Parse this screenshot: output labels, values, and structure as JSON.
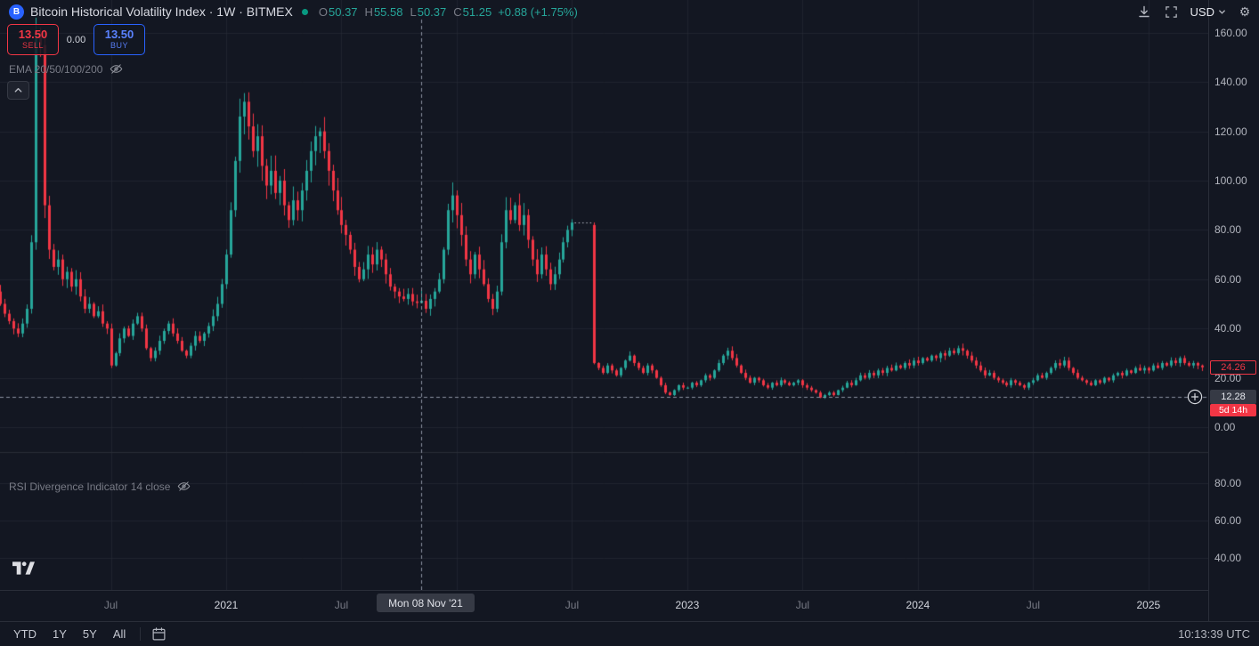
{
  "colors": {
    "bg": "#131722",
    "up": "#26a69a",
    "down": "#f23645",
    "blue": "#2962ff"
  },
  "header": {
    "logo_letter": "B",
    "symbol_title": "Bitcoin Historical Volatility Index · 1W · BITMEX",
    "ohlc": {
      "o_label": "O",
      "o": "50.37",
      "h_label": "H",
      "h": "55.58",
      "l_label": "L",
      "l": "50.37",
      "c_label": "C",
      "c": "51.25",
      "change": "+0.88 (+1.75%)"
    },
    "currency": "USD"
  },
  "trade_panel": {
    "sell_price": "13.50",
    "sell_label": "SELL",
    "spread": "0.00",
    "buy_price": "13.50",
    "buy_label": "BUY"
  },
  "indicators": {
    "ema_label": "EMA 20/50/100/200",
    "rsi_label": "RSI Divergence Indicator 14 close"
  },
  "price_scale": {
    "last_price": "24.26",
    "crosshair_price": "12.28",
    "countdown": "5d 14h"
  },
  "crosshair": {
    "date_label": "Mon 08 Nov '21"
  },
  "toolbar": {
    "ranges": [
      "YTD",
      "1Y",
      "5Y",
      "All"
    ],
    "clock": "10:13:39 UTC"
  },
  "chart_data": {
    "type": "candlestick",
    "title": "Bitcoin Historical Volatility Index",
    "interval": "1W",
    "exchange": "BITMEX",
    "unit": "USD",
    "x_range": [
      "Jan 2020",
      "Feb 2025"
    ],
    "ylim": [
      -12,
      168
    ],
    "yticks": [
      0,
      20,
      40,
      60,
      80,
      100,
      120,
      140,
      160
    ],
    "up_color": "#26a69a",
    "down_color": "#f23645",
    "weekly_closes": [
      55,
      50,
      46,
      43,
      40,
      38,
      42,
      48,
      75,
      160,
      155,
      90,
      72,
      65,
      68,
      60,
      63,
      57,
      60,
      53,
      48,
      50,
      45,
      47,
      42,
      40,
      25,
      30,
      36,
      40,
      37,
      42,
      45,
      40,
      32,
      28,
      31,
      35,
      39,
      42,
      38,
      35,
      31,
      29,
      33,
      37,
      35,
      38,
      41,
      45,
      50,
      58,
      70,
      88,
      108,
      126,
      132,
      122,
      112,
      118,
      106,
      98,
      104,
      95,
      100,
      90,
      84,
      92,
      88,
      96,
      104,
      112,
      118,
      120,
      112,
      104,
      96,
      88,
      82,
      78,
      72,
      65,
      60,
      64,
      70,
      66,
      72,
      68,
      62,
      57,
      55,
      53,
      52,
      54,
      51,
      50.37,
      51.25,
      48,
      52,
      55,
      60,
      72,
      88,
      94,
      86,
      78,
      68,
      62,
      70,
      64,
      58,
      52,
      48,
      55,
      75,
      88,
      84,
      90,
      82,
      86,
      76,
      68,
      62,
      70,
      64,
      58,
      62,
      68,
      75,
      80,
      83,
      82,
      84,
      83,
      82,
      26,
      24,
      22,
      25,
      23,
      21,
      24,
      27,
      29,
      26,
      24,
      22,
      25,
      23,
      20,
      17,
      14,
      13,
      15,
      17,
      16,
      16,
      18,
      17,
      19,
      21,
      20,
      23,
      26,
      29,
      31,
      28,
      25,
      22,
      20,
      18,
      20,
      19,
      17,
      16,
      18,
      17,
      19,
      18,
      17,
      18,
      19,
      17,
      16,
      15,
      14,
      12,
      13,
      14,
      13,
      15,
      16,
      18,
      17,
      19,
      21,
      20,
      22,
      21,
      23,
      22,
      24,
      23,
      25,
      24,
      26,
      25,
      27,
      26,
      28,
      27,
      29,
      28,
      30,
      29,
      31,
      30,
      32,
      31,
      29,
      27,
      25,
      23,
      21,
      22,
      20,
      19,
      18,
      17,
      19,
      18,
      17,
      16,
      18,
      19,
      21,
      20,
      22,
      24,
      26,
      25,
      27,
      24,
      22,
      20,
      19,
      18,
      17,
      19,
      18,
      20,
      19,
      21,
      22,
      21,
      23,
      22,
      24,
      23,
      24,
      23,
      25,
      24,
      26,
      25,
      27,
      26,
      28,
      26,
      25,
      26,
      25,
      24.26
    ],
    "hovered_bar": {
      "index": 96,
      "date": "Mon 08 Nov '21",
      "open": 50.37,
      "high": 55.58,
      "low": 50.37,
      "close": 51.25,
      "change": "+0.88 (+1.75%)"
    },
    "last_close": 24.26,
    "crosshair_price": 12.28,
    "data_gap": {
      "start_index": 130,
      "end_index": 135
    },
    "lower_pane": {
      "name": "RSI Divergence Indicator 14 close",
      "hidden": true,
      "yticks": [
        80,
        60,
        40
      ]
    },
    "time_ticks": [
      {
        "label": "Jul",
        "week": 26,
        "major": false
      },
      {
        "label": "2021",
        "week": 52,
        "major": true
      },
      {
        "label": "Jul",
        "week": 78,
        "major": false
      },
      {
        "label": "2022",
        "week": 104,
        "major": true
      },
      {
        "label": "Jul",
        "week": 130,
        "major": false
      },
      {
        "label": "2023",
        "week": 156,
        "major": true
      },
      {
        "label": "Jul",
        "week": 182,
        "major": false
      },
      {
        "label": "2024",
        "week": 208,
        "major": true
      },
      {
        "label": "Jul",
        "week": 234,
        "major": false
      },
      {
        "label": "2025",
        "week": 260,
        "major": true
      }
    ]
  }
}
